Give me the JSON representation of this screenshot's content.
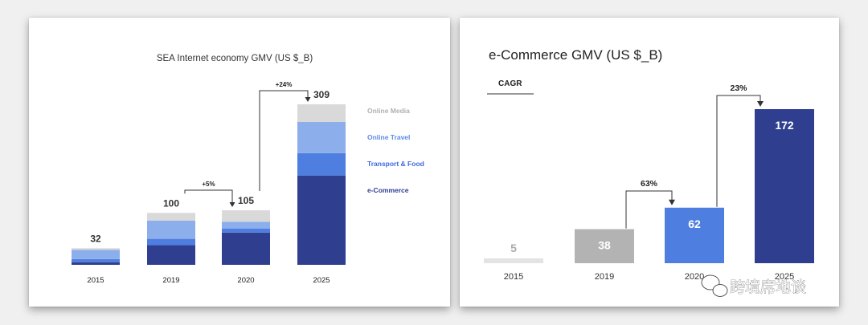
{
  "chart_data": [
    {
      "type": "bar",
      "stacked": true,
      "title": "SEA Internet economy GMV (US $_B)",
      "categories": [
        "2015",
        "2019",
        "2020",
        "2025"
      ],
      "totals": [
        "32",
        "100",
        "105",
        "309"
      ],
      "series": [
        {
          "name": "e-Commerce",
          "color": "#2f3e8f",
          "values": [
            5,
            38,
            62,
            172
          ]
        },
        {
          "name": "Transport & Food",
          "color": "#4e7fe0",
          "values": [
            6,
            12,
            8,
            43
          ]
        },
        {
          "name": "Online Travel",
          "color": "#8caeea",
          "values": [
            18,
            35,
            13,
            60
          ]
        },
        {
          "name": "Online Media",
          "color": "#d9d9d9",
          "values": [
            3,
            15,
            22,
            34
          ]
        }
      ],
      "legend_position": "right",
      "annotations": [
        {
          "from": "2019",
          "to": "2020",
          "label": "+5%"
        },
        {
          "from": "2020",
          "to": "2025",
          "label": "+24%"
        }
      ],
      "grid": false,
      "ylim": [
        0,
        309
      ]
    },
    {
      "type": "bar",
      "title": "e-Commerce GMV (US $_B)",
      "subtitle": "CAGR",
      "categories": [
        "2015",
        "2019",
        "2020",
        "2025"
      ],
      "values": [
        5,
        38,
        62,
        172
      ],
      "value_labels": [
        "5",
        "38",
        "62",
        "172"
      ],
      "colors": [
        "#e3e3e3",
        "#b3b3b3",
        "#4e7fe0",
        "#2f3e8f"
      ],
      "annotations": [
        {
          "from": "2019",
          "to": "2020",
          "label": "63%"
        },
        {
          "from": "2020",
          "to": "2025",
          "label": "23%"
        }
      ],
      "grid": false,
      "ylim": [
        0,
        172
      ]
    }
  ],
  "watermark": "跨境席地谈"
}
